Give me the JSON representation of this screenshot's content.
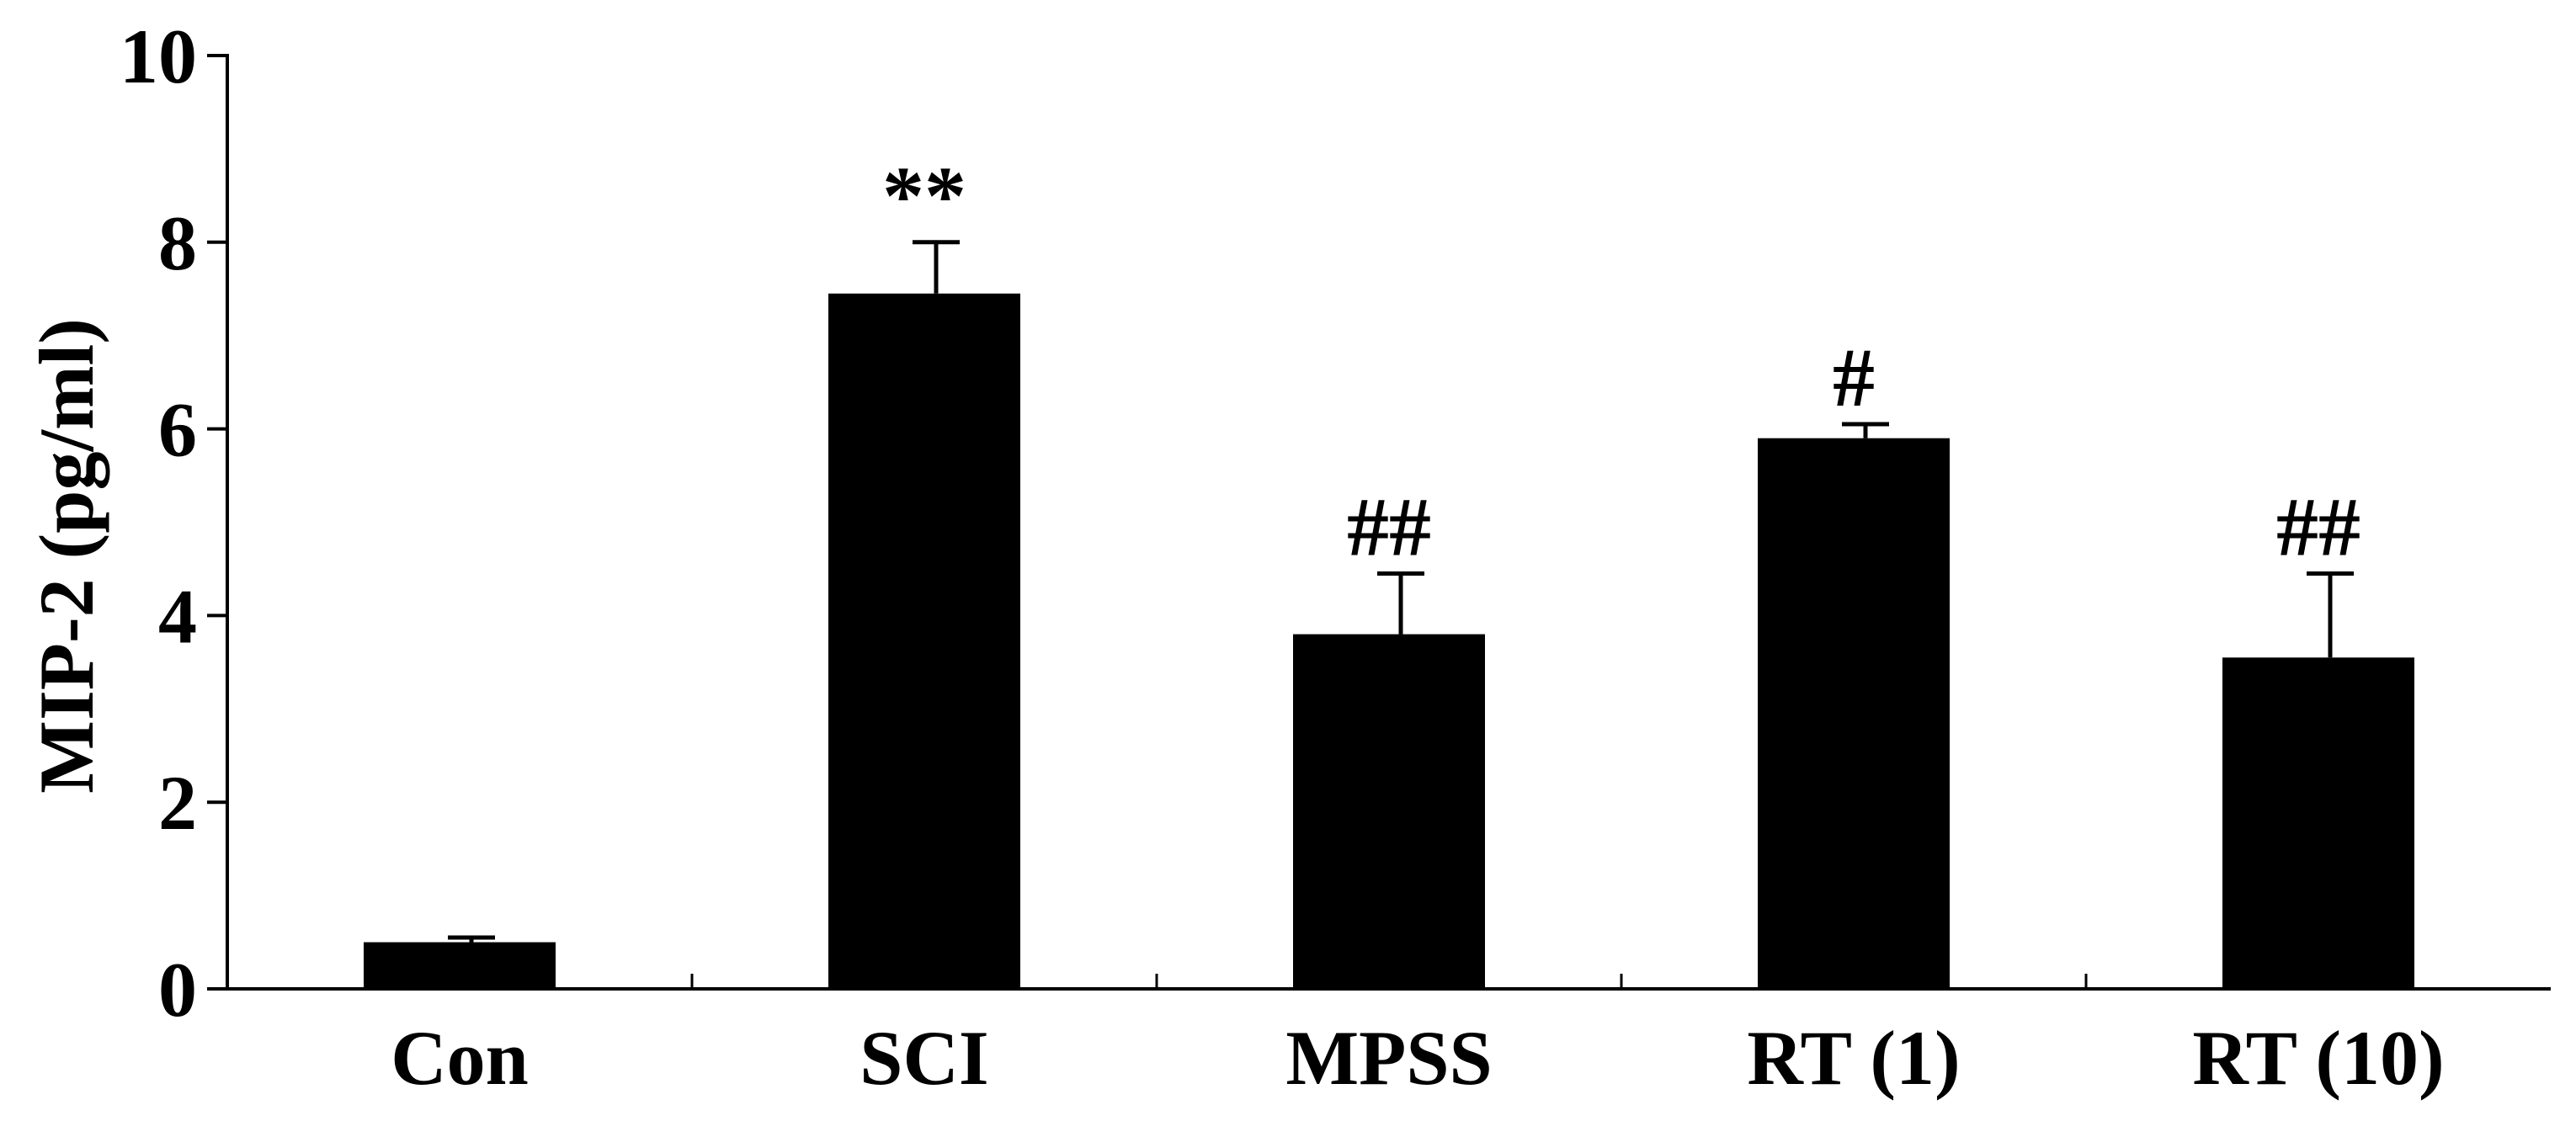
{
  "chart_data": {
    "type": "bar",
    "title": "",
    "xlabel": "",
    "ylabel": "MIP-2 (pg/ml)",
    "ylim": [
      0,
      10
    ],
    "yticks": [
      0,
      2,
      4,
      6,
      8,
      10
    ],
    "grid": false,
    "legend": "none",
    "categories": [
      "Con",
      "SCI",
      "MPSS",
      "RT (1)",
      "RT (10)"
    ],
    "values": [
      0.5,
      7.45,
      3.8,
      5.9,
      3.55
    ],
    "errors": [
      0.05,
      0.55,
      0.65,
      0.15,
      0.9
    ],
    "annotations": [
      "",
      "**",
      "##",
      "#",
      "##"
    ],
    "bar_color": "#000000"
  }
}
